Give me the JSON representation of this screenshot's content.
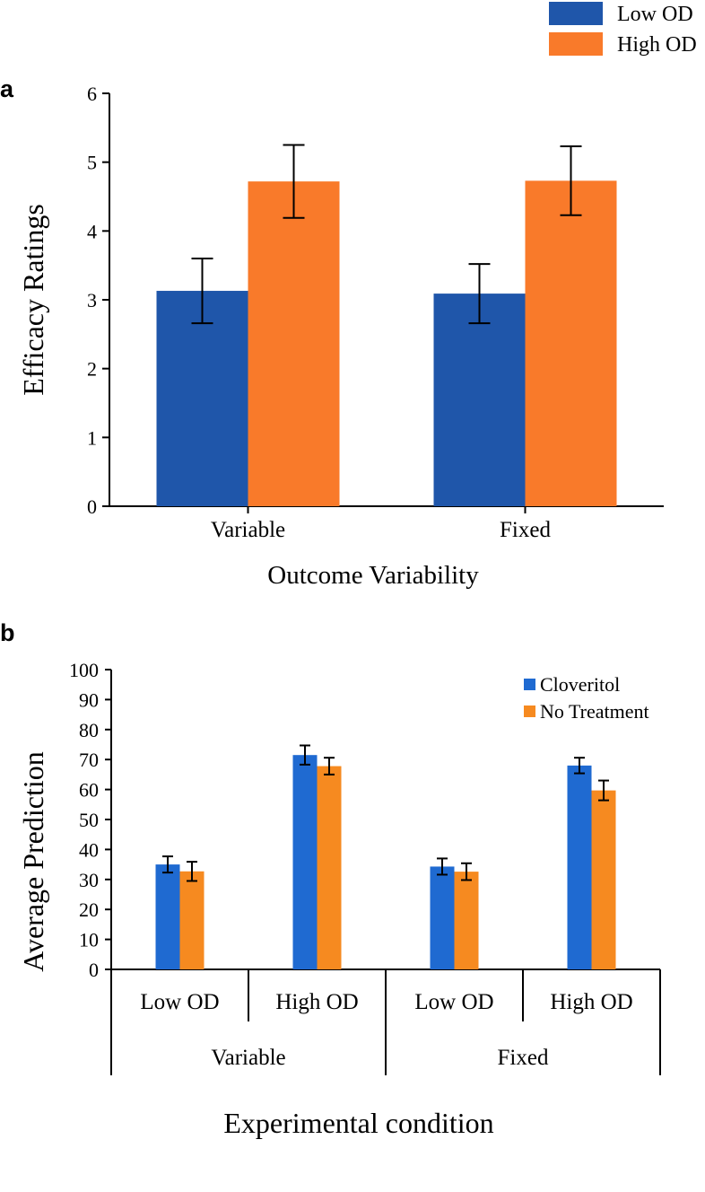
{
  "chart_data": [
    {
      "id": "a",
      "panel_label": "a",
      "type": "bar",
      "title": "",
      "xlabel": "Outcome Variability",
      "ylabel": "Efficacy Ratings",
      "ylim": [
        0,
        6
      ],
      "yticks": [
        "0",
        "1",
        "2",
        "3",
        "4",
        "5",
        "6"
      ],
      "categories": [
        "Variable",
        "Fixed"
      ],
      "grid": false,
      "legend": "top-right",
      "series": [
        {
          "name": "Low OD",
          "color": "#1f56aa",
          "values": [
            3.13,
            3.09
          ],
          "errors": [
            0.47,
            0.43
          ]
        },
        {
          "name": "High OD",
          "color": "#f97a2a",
          "values": [
            4.72,
            4.73
          ],
          "errors": [
            0.53,
            0.5
          ]
        }
      ]
    },
    {
      "id": "b",
      "panel_label": "b",
      "type": "bar",
      "title": "",
      "xlabel": "Experimental condition",
      "ylabel": "Average Prediction",
      "ylim": [
        0,
        100
      ],
      "yticks": [
        "0",
        "10",
        "20",
        "30",
        "40",
        "50",
        "60",
        "70",
        "80",
        "90",
        "100"
      ],
      "categories": [
        "Low OD",
        "High OD",
        "Low OD",
        "High OD"
      ],
      "groups": [
        "Variable",
        "Fixed"
      ],
      "grid": false,
      "legend": "top-right",
      "series": [
        {
          "name": "Cloveritol",
          "color": "#1f6ad1",
          "values": [
            35,
            71.5,
            34.3,
            68
          ],
          "errors": [
            2.7,
            3.2,
            2.7,
            2.6
          ]
        },
        {
          "name": "No Treatment",
          "color": "#f68a20",
          "values": [
            32.7,
            67.8,
            32.6,
            59.7
          ],
          "errors": [
            3.2,
            2.8,
            2.8,
            3.3
          ]
        }
      ]
    }
  ]
}
